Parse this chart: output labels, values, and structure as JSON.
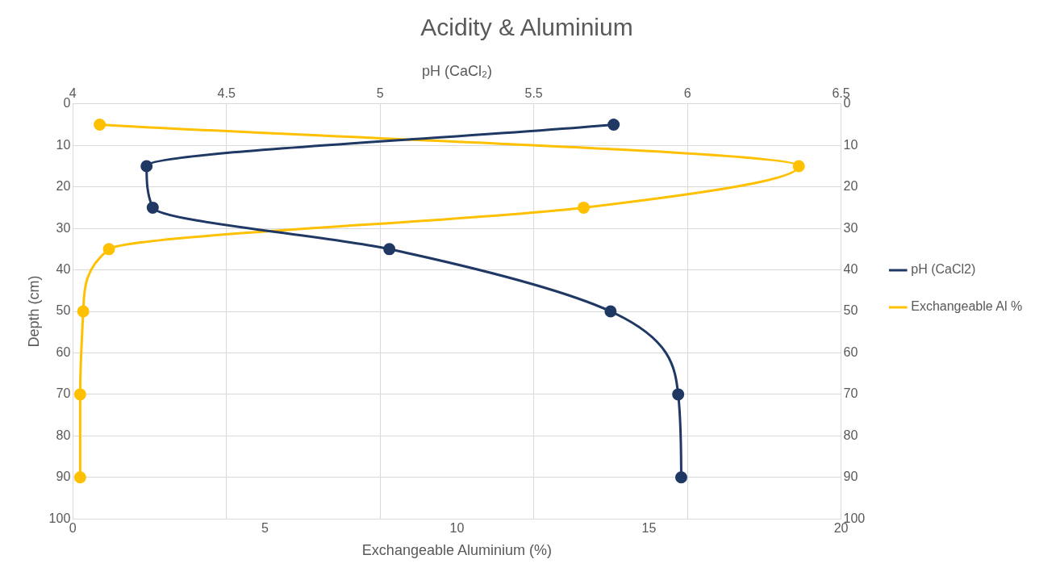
{
  "chart_data": {
    "type": "line",
    "title": "Acidity & Aluminium",
    "xlabel": "Exchangeable Aluminium (%)",
    "x2label": "pH (CaCl₂)",
    "ylabel": "Depth (cm)",
    "series": [
      {
        "name": "pH (CaCl2)",
        "color": "#1f3864",
        "axis": "x2",
        "x": [
          5.76,
          4.24,
          4.26,
          5.03,
          5.75,
          5.97,
          5.98
        ],
        "values": [
          5,
          15,
          25,
          35,
          50,
          70,
          90
        ]
      },
      {
        "name": "Exchangeable Al %",
        "color": "#ffc000",
        "x": [
          0.7,
          18.9,
          13.3,
          0.94,
          0.27,
          0.19,
          0.19
        ],
        "values": [
          5,
          15,
          25,
          35,
          50,
          70,
          90
        ]
      }
    ],
    "xlim": [
      0,
      20
    ],
    "xticks": [
      0,
      5,
      10,
      15,
      20
    ],
    "x2lim": [
      4,
      6.5
    ],
    "x2ticks": [
      4,
      4.5,
      5,
      5.5,
      6,
      6.5
    ],
    "ylim": [
      100,
      0
    ],
    "yticks": [
      0,
      10,
      20,
      30,
      40,
      50,
      60,
      70,
      80,
      90,
      100
    ],
    "y2lim": [
      100,
      0
    ],
    "y2ticks": [
      0,
      10,
      20,
      30,
      40,
      50,
      60,
      70,
      80,
      90,
      100
    ],
    "grid": true,
    "legend": "right",
    "marker": "circle"
  }
}
